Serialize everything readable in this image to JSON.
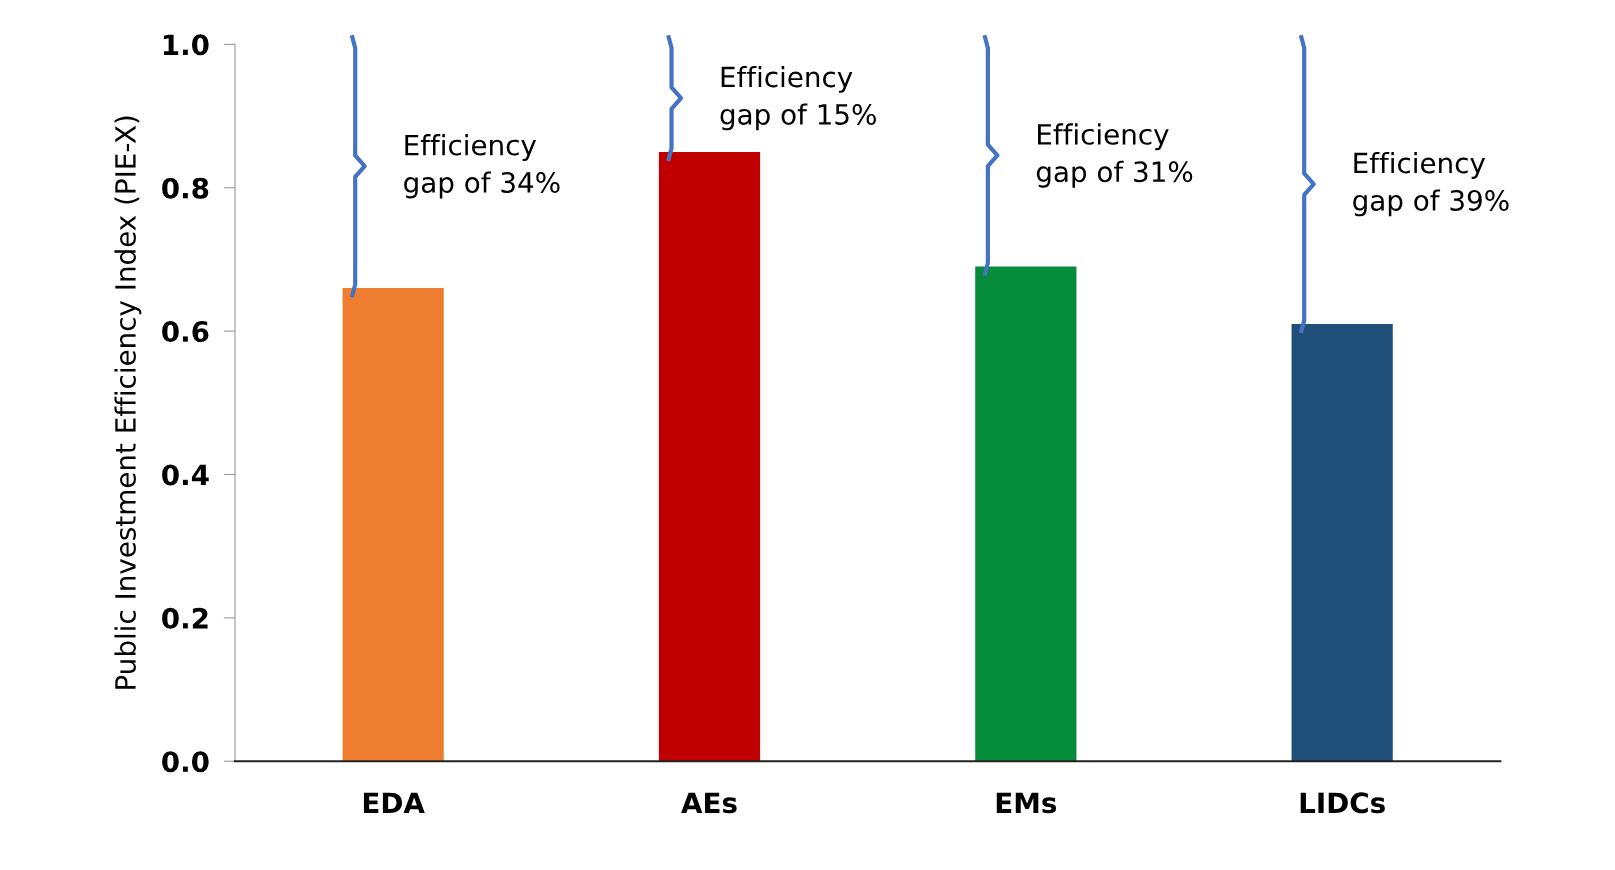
{
  "chart_data": {
    "type": "bar",
    "ylabel": "Public Investment Efficiency Index (PIE-X)",
    "categories": [
      "EDA",
      "AEs",
      "EMs",
      "LIDCs"
    ],
    "values": [
      0.66,
      0.85,
      0.69,
      0.61
    ],
    "colors": [
      "#ed7d31",
      "#c00000",
      "#058c3a",
      "#1f4e79"
    ],
    "ylim": [
      0,
      1.0
    ],
    "yticks": [
      {
        "value": 0,
        "label": "0.0"
      },
      {
        "value": 0.2,
        "label": "0.2"
      },
      {
        "value": 0.4,
        "label": "0.4"
      },
      {
        "value": 0.6,
        "label": "0.6"
      },
      {
        "value": 0.8,
        "label": "0.8"
      },
      {
        "value": 1.0,
        "label": "1.0"
      }
    ],
    "grid": false,
    "annotations": [
      "Efficiency\ngap of 34%",
      "Efficiency\ngap of 15%",
      "Efficiency\ngap of 31%",
      "Efficiency\ngap of 39%"
    ]
  }
}
